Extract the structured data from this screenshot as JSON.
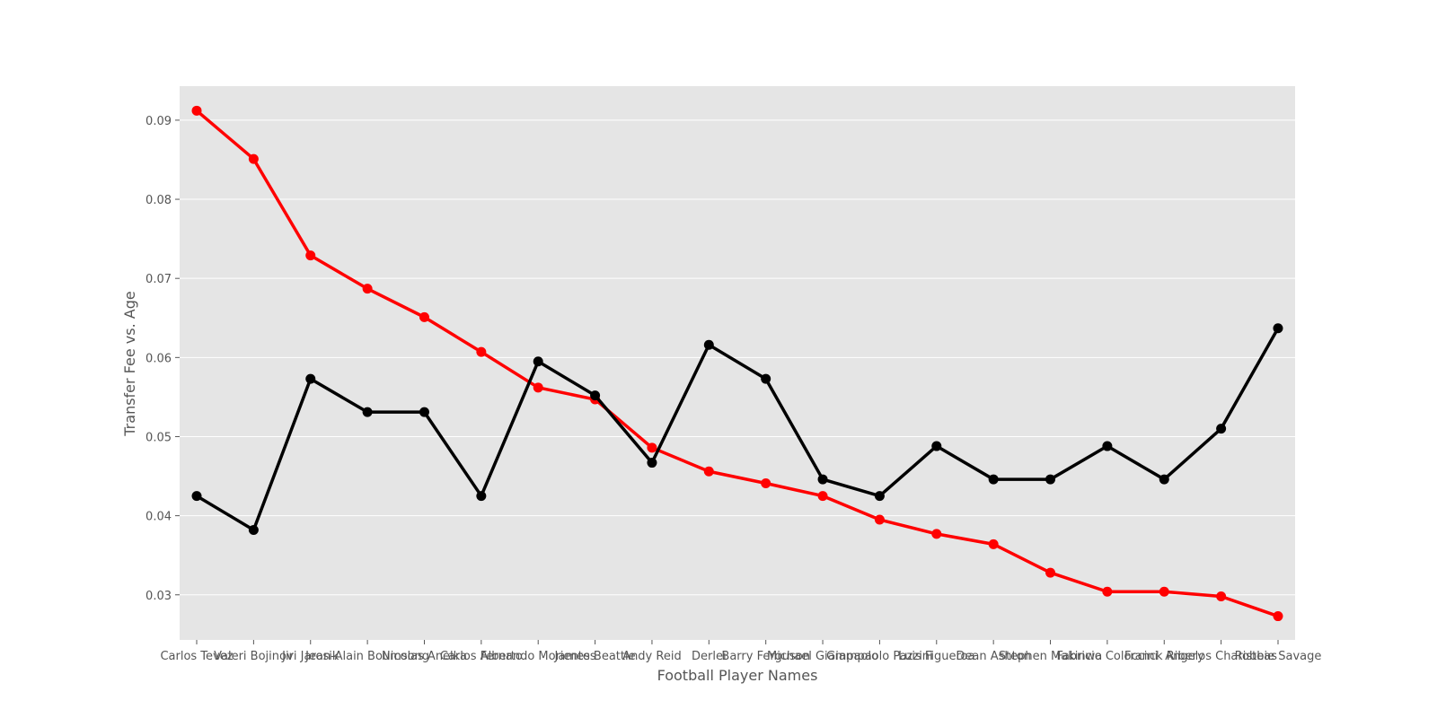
{
  "chart_data": {
    "type": "line",
    "title": "",
    "xlabel": "Football Player Names",
    "ylabel": "Transfer Fee vs. Age",
    "categories": [
      "Carlos Tevez",
      "Valeri Bojinov",
      "Jiri Jarosik",
      "Jean-Alain Boumsong",
      "Nicolas Anelka",
      "Carlos Alberto",
      "Fernando Morientes",
      "James Beattie",
      "Andy Reid",
      "Derlei",
      "Barry Ferguson",
      "Michael Giampaolo",
      "Giampaolo Pazzini",
      "Luis Figueroa",
      "Dean Ashton",
      "Stephen Makinwa",
      "Fabricio Coloccini",
      "Franck Ribery",
      "Angelos Charisteas",
      "Robbie Savage"
    ],
    "series": [
      {
        "color": "#ff0000",
        "values": [
          0.0912,
          0.0851,
          0.0729,
          0.0687,
          0.0651,
          0.0607,
          0.0562,
          0.0547,
          0.0486,
          0.0456,
          0.0441,
          0.0425,
          0.0395,
          0.0377,
          0.0364,
          0.0328,
          0.0304,
          0.0304,
          0.0298,
          0.0273
        ]
      },
      {
        "color": "#000000",
        "values": [
          0.0425,
          0.0382,
          0.0573,
          0.0531,
          0.0531,
          0.0425,
          0.0595,
          0.0552,
          0.0467,
          0.0616,
          0.0573,
          0.0446,
          0.0425,
          0.0488,
          0.0446,
          0.0446,
          0.0488,
          0.0446,
          0.051,
          0.0637
        ]
      }
    ],
    "ylim": [
      0.0243,
      0.0943
    ],
    "yticks": [
      0.03,
      0.04,
      0.05,
      0.06,
      0.07,
      0.08,
      0.09
    ],
    "ytick_labels": [
      "0.03",
      "0.04",
      "0.05",
      "0.06",
      "0.07",
      "0.08",
      "0.09"
    ],
    "grid": true,
    "style": "ggplot",
    "background_color": "#e5e5e5",
    "grid_color": "#ffffff",
    "text_color": "#555555"
  }
}
